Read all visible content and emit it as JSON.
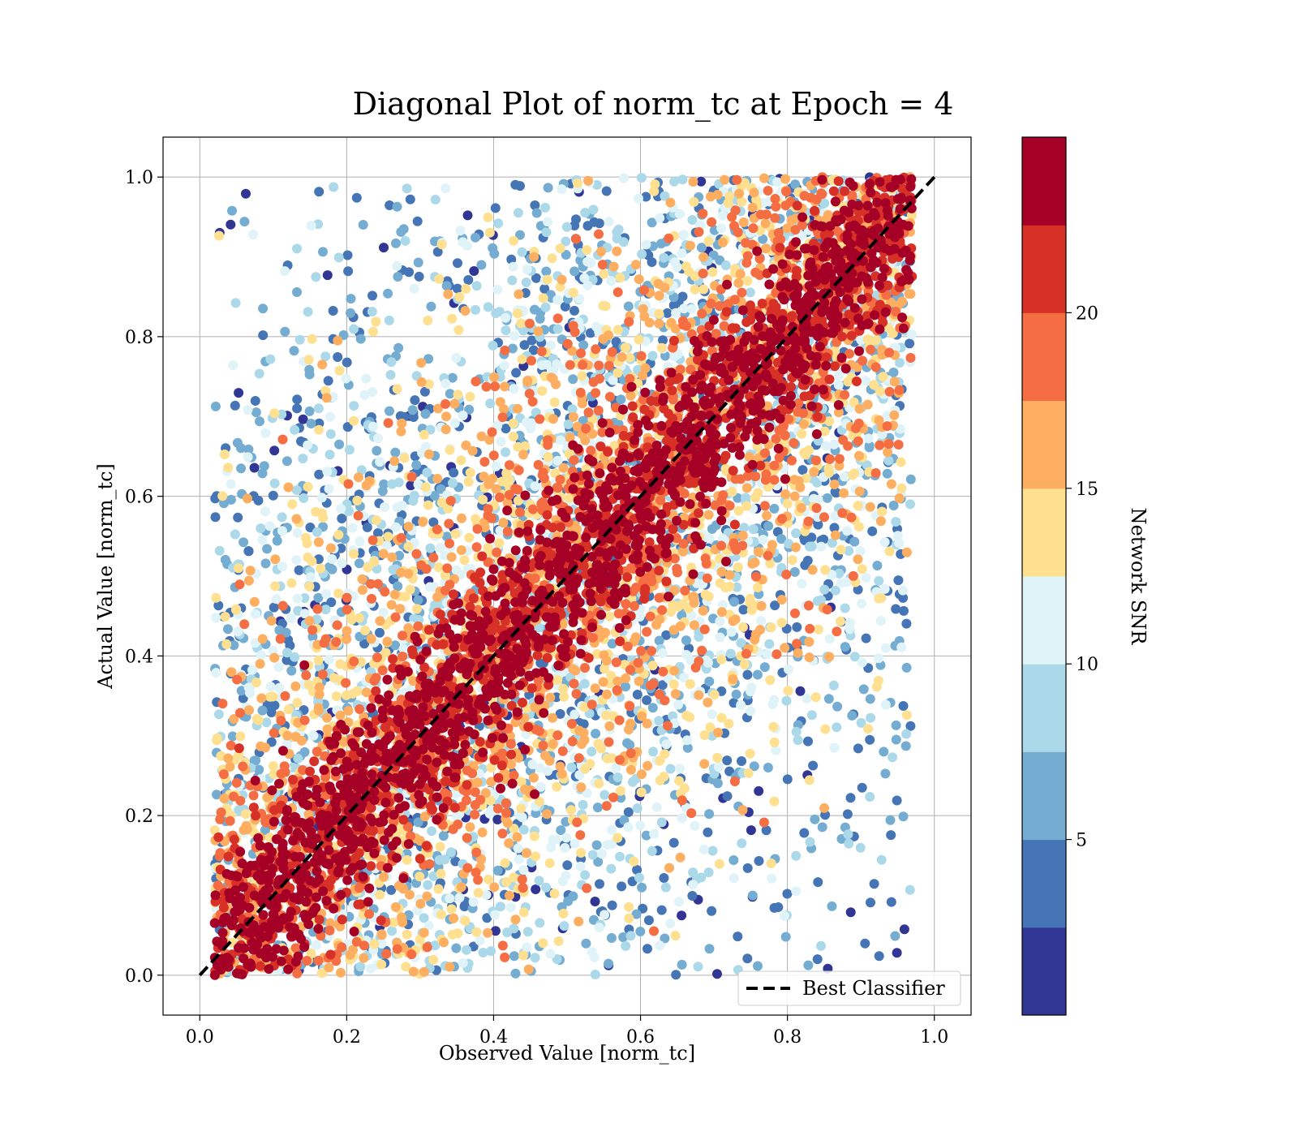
{
  "chart_data": {
    "type": "scatter",
    "title": "Diagonal Plot of norm_tc at Epoch = 4",
    "xlabel": "Observed Value [norm_tc]",
    "ylabel": "Actual Value [norm_tc]",
    "xlim": [
      -0.05,
      1.05
    ],
    "ylim": [
      -0.05,
      1.05
    ],
    "xticks": [
      "0.0",
      "0.2",
      "0.4",
      "0.6",
      "0.8",
      "1.0"
    ],
    "yticks": [
      "0.0",
      "0.2",
      "0.4",
      "0.6",
      "0.8",
      "1.0"
    ],
    "xtick_values": [
      0.0,
      0.2,
      0.4,
      0.6,
      0.8,
      1.0
    ],
    "ytick_values": [
      0.0,
      0.2,
      0.4,
      0.6,
      0.8,
      1.0
    ],
    "grid": true,
    "reference_line": {
      "name": "Best Classifier",
      "x": [
        0.0,
        1.0
      ],
      "y": [
        0.0,
        1.0
      ],
      "style": "dashed",
      "color": "#000000"
    },
    "legend": {
      "position": "lower-right",
      "entries": [
        "Best Classifier"
      ]
    },
    "colorbar": {
      "label": "Network SNR",
      "range": [
        0,
        25
      ],
      "ticks": [
        "5",
        "10",
        "15",
        "20"
      ],
      "tick_values": [
        5,
        10,
        15,
        20
      ],
      "colors": [
        "#313695",
        "#4575b4",
        "#74add1",
        "#abd9e9",
        "#e0f3f8",
        "#ffffbf",
        "#fee090",
        "#fdae61",
        "#f46d43",
        "#d73027",
        "#a50026"
      ],
      "scheme": "RdYlBu reversed, 10 discrete bins"
    },
    "point_colors": {
      "high_snr": "#a50026",
      "low_snr": "#313695"
    },
    "description_of_distribution": {
      "high_snr_band_halfwidth": 0.1,
      "low_snr_spread_up_to": 0.45,
      "points_clipped_to": [
        0.0,
        1.0
      ]
    }
  }
}
